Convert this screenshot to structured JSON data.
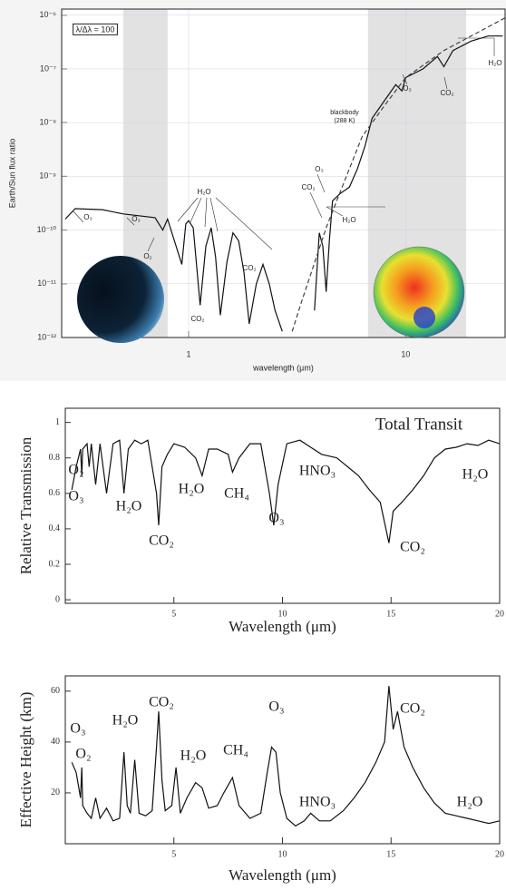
{
  "chart_data": [
    {
      "type": "line",
      "xlog": true,
      "ylog": true,
      "xlabel": "wavelength (µm)",
      "ylabel": "Earth/Sun flux ratio",
      "xlim": [
        0.26,
        28.7
      ],
      "ylim": [
        1e-12,
        1.3e-06
      ],
      "xticks": [
        1,
        10
      ],
      "yticks": [
        {
          "value": 1e-12,
          "label": "10⁻¹²"
        },
        {
          "value": 1e-11,
          "label": "10⁻¹¹"
        },
        {
          "value": 1e-10,
          "label": "10⁻¹⁰"
        },
        {
          "value": 1e-09,
          "label": "10⁻⁹"
        },
        {
          "value": 1e-08,
          "label": "10⁻⁸"
        },
        {
          "value": 1e-07,
          "label": "10⁻⁷"
        },
        {
          "value": 1e-06,
          "label": "10⁻⁶"
        }
      ],
      "shaded": [
        [
          0.5,
          0.8
        ],
        [
          6.7,
          19
        ]
      ],
      "series": [
        {
          "color": "#111111",
          "x": [
            0.27,
            0.3,
            0.4,
            0.5,
            0.7,
            0.76,
            0.8,
            0.93,
            0.97,
            1.0,
            1.05,
            1.13,
            1.2,
            1.27,
            1.33,
            1.4,
            1.5,
            1.6,
            1.7,
            1.8,
            1.9,
            2.05,
            2.2,
            2.35,
            2.5,
            2.7,
            3.2,
            3.8,
            4.0,
            4.15,
            4.3,
            4.45,
            4.6,
            5.0,
            5.5,
            6.0,
            6.5,
            7.0,
            8.0,
            9.0,
            9.6,
            10,
            12,
            14,
            15,
            16.5,
            20,
            24,
            28
          ],
          "values": [
            1.6e-10,
            2.5e-10,
            2.4e-10,
            2e-10,
            1.7e-10,
            1e-10,
            1.6e-10,
            2.3e-11,
            1.3e-10,
            1.5e-10,
            1.1e-10,
            4e-12,
            5e-11,
            1.1e-10,
            3.2e-11,
            2.6e-12,
            2.5e-11,
            8.9e-11,
            6.3e-11,
            1.6e-11,
            1.8e-12,
            1e-11,
            2.3e-11,
            1e-11,
            3.2e-12,
            1.3e-12,
            null,
            3.2e-12,
            8.9e-11,
            5e-11,
            7.1e-12,
            6.3e-11,
            3.5e-10,
            4.8e-10,
            6.3e-10,
            1.4e-09,
            3.7e-09,
            1.2e-08,
            2.6e-08,
            5.1e-08,
            3.9e-08,
            6.9e-08,
            1e-07,
            1.7e-07,
            1.1e-07,
            2.2e-07,
            3.3e-07,
            4.1e-07,
            4.1e-07
          ]
        },
        {
          "color": "#444444",
          "dash": true,
          "x": [
            3.0,
            3.3,
            4.3,
            5.0,
            6.3,
            8.0,
            10,
            15,
            20,
            28.7
          ],
          "values": [
            1.3e-12,
            4.4e-12,
            1.1e-10,
            5.2e-10,
            5.5e-09,
            2.1e-08,
            6.9e-08,
            2.2e-07,
            4.1e-07,
            8.9e-07
          ]
        }
      ],
      "annotations": [
        "λ/Δλ = 100",
        "blackbody",
        "(288 K)",
        "O₃",
        "O₃",
        "O₂",
        "H₂O",
        "CO₂",
        "CO₂",
        "O₃",
        "CO₂",
        "H₂O",
        "O₃",
        "CO₂",
        "H₂O"
      ]
    },
    {
      "type": "line",
      "xlog": false,
      "ylog": false,
      "xlabel": "Wavelength (μm)",
      "ylabel": "Relative Transmission",
      "xlim": [
        0,
        20
      ],
      "ylim": [
        -0.02,
        1.08
      ],
      "xticks": [
        5,
        10,
        15,
        20
      ],
      "yticks": [
        0,
        0.2,
        0.4,
        0.6,
        0.8,
        1
      ],
      "series": [
        {
          "color": "#111111",
          "x": [
            0.3,
            0.5,
            0.7,
            0.76,
            0.8,
            1.0,
            1.1,
            1.2,
            1.4,
            1.6,
            1.9,
            2.2,
            2.5,
            2.7,
            2.9,
            3.2,
            3.5,
            3.8,
            4.2,
            4.3,
            4.45,
            4.7,
            5.0,
            5.5,
            6.0,
            6.3,
            6.6,
            7.0,
            7.5,
            7.7,
            8.0,
            8.5,
            9.0,
            9.4,
            9.6,
            9.8,
            10.2,
            10.8,
            11.3,
            11.8,
            12.5,
            13.0,
            13.5,
            14.0,
            14.5,
            14.9,
            15.1,
            15.5,
            16,
            16.5,
            17,
            17.5,
            18,
            18.5,
            19,
            19.5,
            20
          ],
          "values": [
            0.62,
            0.75,
            0.85,
            0.7,
            0.85,
            0.88,
            0.75,
            0.88,
            0.65,
            0.88,
            0.6,
            0.88,
            0.9,
            0.6,
            0.85,
            0.9,
            0.88,
            0.9,
            0.6,
            0.42,
            0.75,
            0.82,
            0.88,
            0.86,
            0.8,
            0.7,
            0.85,
            0.85,
            0.82,
            0.72,
            0.8,
            0.88,
            0.88,
            0.6,
            0.42,
            0.65,
            0.88,
            0.9,
            0.86,
            0.82,
            0.8,
            0.75,
            0.7,
            0.62,
            0.55,
            0.32,
            0.5,
            0.55,
            0.62,
            0.7,
            0.8,
            0.85,
            0.86,
            0.88,
            0.87,
            0.9,
            0.88
          ]
        }
      ],
      "annotations": [
        "Total Transit",
        "O₂",
        "O₃",
        "H₂O",
        "CO₂",
        "H₂O",
        "CH₄",
        "O₃",
        "HNO₃",
        "CO₂",
        "H₂O"
      ]
    },
    {
      "type": "line",
      "xlog": false,
      "ylog": false,
      "xlabel": "Wavelength (μm)",
      "ylabel": "Effective Height (km)",
      "xlim": [
        0,
        20
      ],
      "ylim": [
        0,
        66
      ],
      "xticks": [
        5,
        10,
        15,
        20
      ],
      "yticks": [
        20,
        40,
        60
      ],
      "series": [
        {
          "color": "#111111",
          "x": [
            0.3,
            0.5,
            0.7,
            0.76,
            0.8,
            1.0,
            1.2,
            1.4,
            1.6,
            1.9,
            2.2,
            2.5,
            2.7,
            2.85,
            3.0,
            3.2,
            3.4,
            3.7,
            4.0,
            4.2,
            4.3,
            4.45,
            4.6,
            4.9,
            5.1,
            5.3,
            5.6,
            6.0,
            6.3,
            6.6,
            7.0,
            7.3,
            7.7,
            8.0,
            8.5,
            9.0,
            9.3,
            9.5,
            9.7,
            9.9,
            10.2,
            10.6,
            11.0,
            11.3,
            11.7,
            12.2,
            12.8,
            13.3,
            13.8,
            14.3,
            14.7,
            14.9,
            15.1,
            15.3,
            15.6,
            16,
            16.5,
            17,
            17.5,
            18,
            18.5,
            19,
            19.5,
            20
          ],
          "values": [
            32,
            28,
            18,
            30,
            15,
            12,
            10,
            18,
            10,
            14,
            9,
            10,
            36,
            15,
            12,
            33,
            12,
            11,
            13,
            38,
            52,
            25,
            13,
            15,
            30,
            12,
            18,
            24,
            22,
            14,
            15,
            20,
            26,
            15,
            10,
            12,
            28,
            38,
            36,
            20,
            10,
            7,
            9,
            12,
            9,
            9,
            13,
            18,
            24,
            32,
            40,
            62,
            45,
            52,
            38,
            30,
            22,
            16,
            12,
            11,
            10,
            9,
            8,
            9
          ]
        }
      ],
      "annotations": [
        "O₃",
        "O₂",
        "H₂O",
        "CO₂",
        "H₂O",
        "CH₄",
        "O₃",
        "HNO₃",
        "CO₂",
        "H₂O"
      ]
    }
  ]
}
